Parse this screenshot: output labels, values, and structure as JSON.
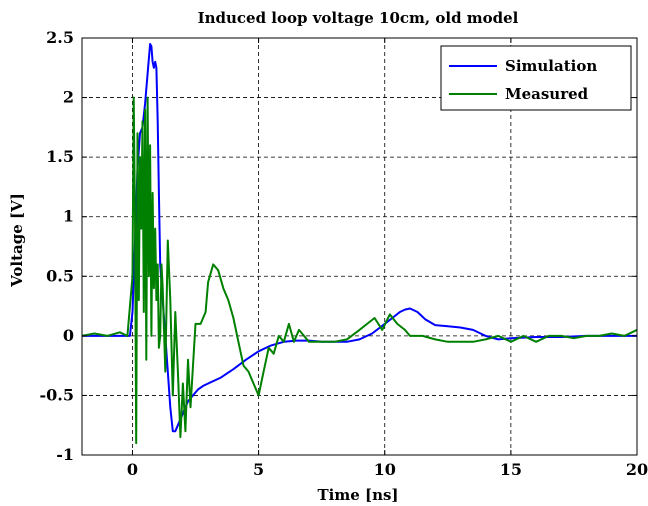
{
  "chart_data": {
    "type": "line",
    "title": "Induced loop voltage 10cm, old model",
    "xlabel": "Time [ns]",
    "ylabel": "Voltage [V]",
    "xlim": [
      -2,
      20
    ],
    "ylim": [
      -1,
      2.5
    ],
    "xticks": [
      0,
      5,
      10,
      15,
      20
    ],
    "xtick_labels": [
      "0",
      "5",
      "10",
      "15",
      "20"
    ],
    "yticks": [
      -1,
      -0.5,
      0,
      0.5,
      1,
      1.5,
      2,
      2.5
    ],
    "ytick_labels": [
      "-1",
      "-0.5",
      "0",
      "0.5",
      "1",
      "1.5",
      "2",
      "2.5"
    ],
    "grid": true,
    "legend_position": "top-right",
    "series": [
      {
        "name": "Simulation",
        "color": "#0000ff",
        "x": [
          -2,
          -0.1,
          0,
          0.1,
          0.2,
          0.3,
          0.4,
          0.5,
          0.6,
          0.7,
          0.75,
          0.8,
          0.85,
          0.9,
          0.95,
          1.0,
          1.05,
          1.1,
          1.2,
          1.3,
          1.4,
          1.5,
          1.6,
          1.7,
          1.8,
          1.9,
          2.0,
          2.1,
          2.2,
          2.4,
          2.6,
          2.8,
          3.0,
          3.5,
          4.0,
          4.5,
          5.0,
          5.5,
          6.0,
          6.5,
          7.0,
          7.5,
          8.0,
          8.5,
          9.0,
          9.5,
          10.0,
          10.3,
          10.6,
          10.8,
          11.0,
          11.3,
          11.6,
          12.0,
          12.5,
          13.0,
          13.5,
          14.0,
          14.5,
          15.0,
          16.0,
          17.0,
          18.0,
          19.0,
          20.0
        ],
        "y": [
          0,
          0,
          0.2,
          0.8,
          1.4,
          1.7,
          1.75,
          1.95,
          2.2,
          2.45,
          2.43,
          2.3,
          2.25,
          2.3,
          2.25,
          1.8,
          1.2,
          0.6,
          0.3,
          0.0,
          -0.3,
          -0.6,
          -0.8,
          -0.8,
          -0.75,
          -0.7,
          -0.65,
          -0.6,
          -0.55,
          -0.5,
          -0.45,
          -0.42,
          -0.4,
          -0.35,
          -0.28,
          -0.2,
          -0.13,
          -0.08,
          -0.05,
          -0.04,
          -0.04,
          -0.05,
          -0.05,
          -0.05,
          -0.03,
          0.02,
          0.1,
          0.15,
          0.2,
          0.22,
          0.23,
          0.2,
          0.14,
          0.09,
          0.08,
          0.07,
          0.05,
          0.0,
          -0.03,
          -0.02,
          -0.01,
          -0.01,
          0.0,
          0.0,
          0.0
        ]
      },
      {
        "name": "Measured",
        "color": "#008000",
        "x": [
          -2,
          -1.5,
          -1.0,
          -0.5,
          -0.2,
          0.0,
          0.05,
          0.1,
          0.15,
          0.2,
          0.25,
          0.3,
          0.35,
          0.4,
          0.45,
          0.5,
          0.55,
          0.6,
          0.65,
          0.7,
          0.75,
          0.8,
          0.85,
          0.9,
          0.95,
          1.0,
          1.05,
          1.1,
          1.15,
          1.2,
          1.3,
          1.4,
          1.5,
          1.6,
          1.7,
          1.8,
          1.9,
          2.0,
          2.1,
          2.2,
          2.3,
          2.5,
          2.7,
          2.9,
          3.0,
          3.2,
          3.4,
          3.6,
          3.8,
          4.0,
          4.2,
          4.4,
          4.6,
          4.8,
          5.0,
          5.2,
          5.4,
          5.6,
          5.8,
          6.0,
          6.2,
          6.4,
          6.6,
          6.8,
          7.0,
          7.5,
          8.0,
          8.5,
          9.0,
          9.3,
          9.6,
          9.9,
          10.2,
          10.5,
          10.8,
          11.0,
          11.5,
          12.0,
          12.5,
          13.0,
          13.5,
          14.0,
          14.5,
          15.0,
          15.5,
          16.0,
          16.5,
          17.0,
          17.5,
          18.0,
          18.5,
          19.0,
          19.5,
          20.0
        ],
        "y": [
          0,
          0.02,
          0.0,
          0.03,
          0.0,
          0.5,
          2.0,
          1.0,
          -0.9,
          1.7,
          0.3,
          1.5,
          0.9,
          1.8,
          0.2,
          1.9,
          -0.2,
          2.0,
          0.5,
          1.6,
          0.0,
          1.2,
          0.4,
          0.9,
          0.3,
          0.6,
          -0.1,
          0.0,
          0.6,
          0.4,
          -0.3,
          0.8,
          0.3,
          -0.5,
          0.2,
          -0.3,
          -0.85,
          -0.4,
          -0.8,
          -0.2,
          -0.6,
          0.1,
          0.1,
          0.2,
          0.45,
          0.6,
          0.55,
          0.4,
          0.3,
          0.15,
          -0.05,
          -0.25,
          -0.3,
          -0.4,
          -0.5,
          -0.3,
          -0.1,
          -0.15,
          0.0,
          -0.05,
          0.1,
          -0.05,
          0.05,
          0.0,
          -0.05,
          -0.05,
          -0.05,
          -0.03,
          0.05,
          0.1,
          0.15,
          0.05,
          0.18,
          0.1,
          0.05,
          0.0,
          0.0,
          -0.03,
          -0.05,
          -0.05,
          -0.05,
          -0.03,
          0.0,
          -0.05,
          0.0,
          -0.05,
          0.0,
          0.0,
          -0.02,
          0.0,
          0.0,
          0.02,
          0.0,
          0.05
        ]
      }
    ]
  }
}
